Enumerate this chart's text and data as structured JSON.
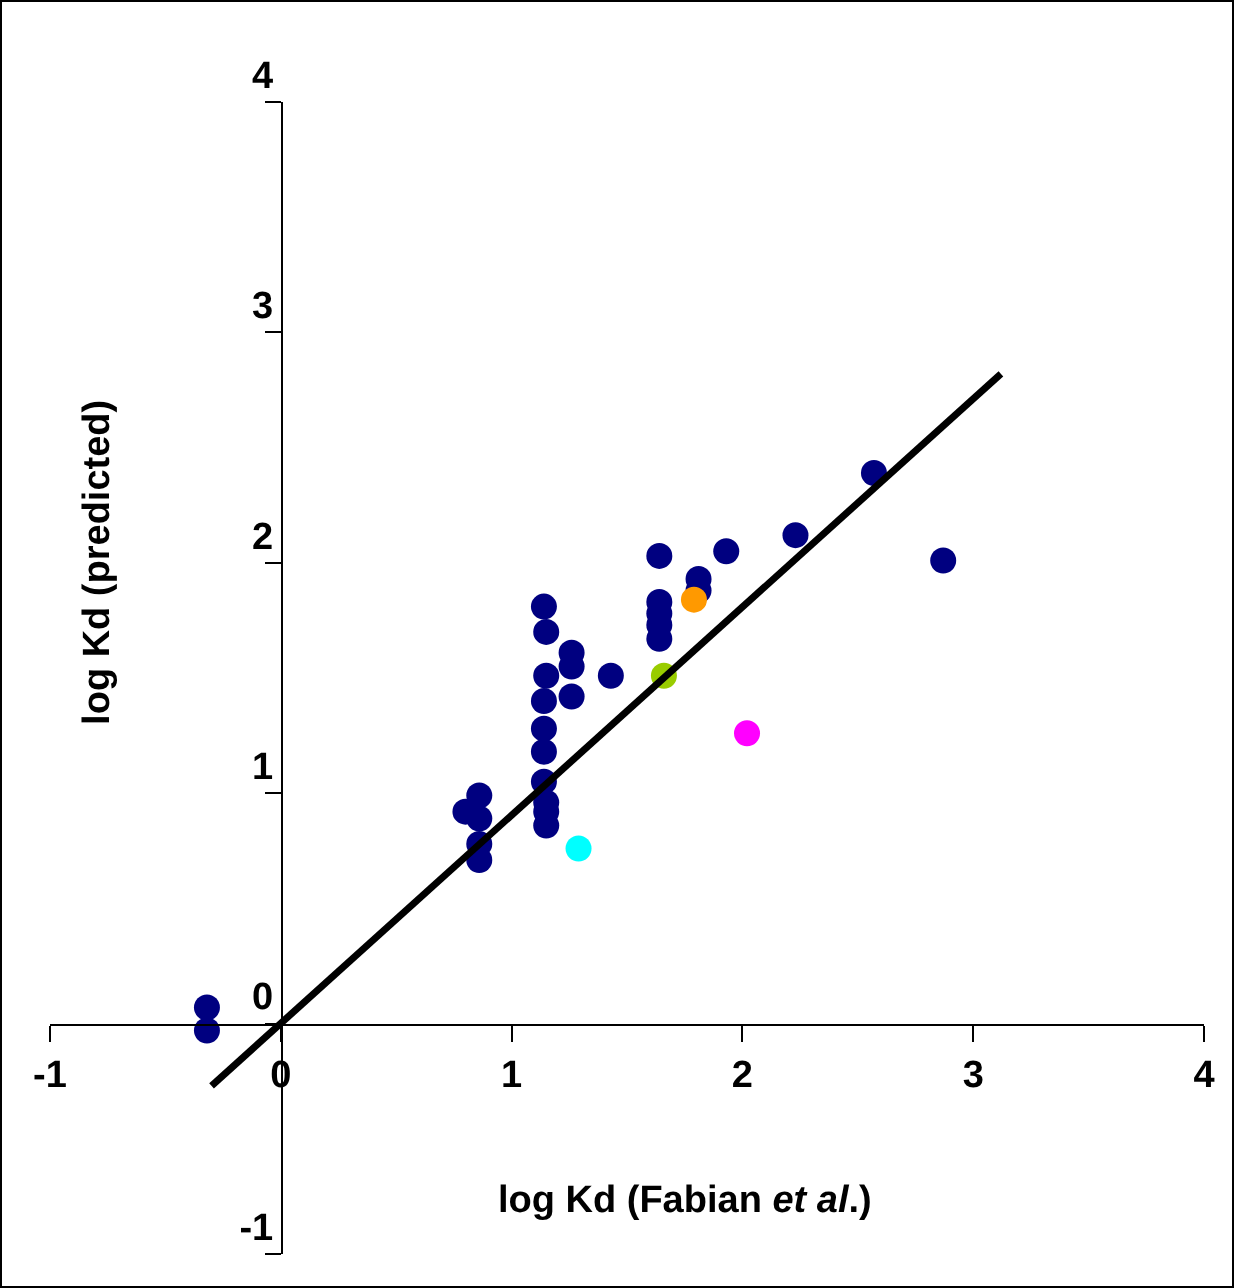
{
  "chart_data": {
    "type": "scatter",
    "xlabel": "log Kd (Fabian $^{}$et al.)",
    "ylabel": "log Kd (predicted)",
    "xlim": [
      -1,
      4
    ],
    "ylim": [
      -1,
      4
    ],
    "xticks": [
      -1,
      0,
      1,
      2,
      3,
      4
    ],
    "yticks": [
      -1,
      0,
      1,
      2,
      3,
      4
    ],
    "grid": false,
    "legend": false,
    "marker": "circle",
    "series": [
      {
        "x": [
          1.14,
          1.15,
          1.26,
          1.26,
          1.15,
          1.43,
          1.14,
          1.26,
          1.14,
          1.14,
          1.14,
          1.15,
          1.15,
          1.15,
          0.86,
          0.8,
          0.86,
          0.86,
          0.86,
          -0.32,
          -0.32,
          2.57,
          2.23,
          2.87,
          1.93,
          1.64,
          1.81,
          1.81,
          1.64,
          1.64,
          1.64,
          1.64,
          1.29,
          1.79,
          1.66,
          2.02
        ],
        "values": [
          1.81,
          1.7,
          1.61,
          1.55,
          1.51,
          1.51,
          1.4,
          1.42,
          1.28,
          1.18,
          1.05,
          0.96,
          0.92,
          0.86,
          0.99,
          0.92,
          0.89,
          0.78,
          0.71,
          0.07,
          -0.03,
          2.39,
          2.12,
          2.01,
          2.05,
          2.03,
          1.93,
          1.88,
          1.83,
          1.78,
          1.73,
          1.67,
          0.76,
          1.84,
          1.51,
          1.26
        ],
        "colors": [
          "#000080",
          "#000080",
          "#000080",
          "#000080",
          "#000080",
          "#000080",
          "#000080",
          "#000080",
          "#000080",
          "#000080",
          "#000080",
          "#000080",
          "#000080",
          "#000080",
          "#000080",
          "#000080",
          "#000080",
          "#000080",
          "#000080",
          "#000080",
          "#000080",
          "#000080",
          "#000080",
          "#000080",
          "#000080",
          "#000080",
          "#000080",
          "#000080",
          "#000080",
          "#000080",
          "#000080",
          "#000080",
          "#00ffff",
          "#ff9900",
          "#99cc00",
          "#ff00ff"
        ]
      },
      {
        "type": "line",
        "x": [
          -0.3,
          3.12
        ],
        "values": [
          -0.27,
          2.82
        ],
        "color": "#000000",
        "marker": "none",
        "line_style": "solid"
      }
    ]
  }
}
